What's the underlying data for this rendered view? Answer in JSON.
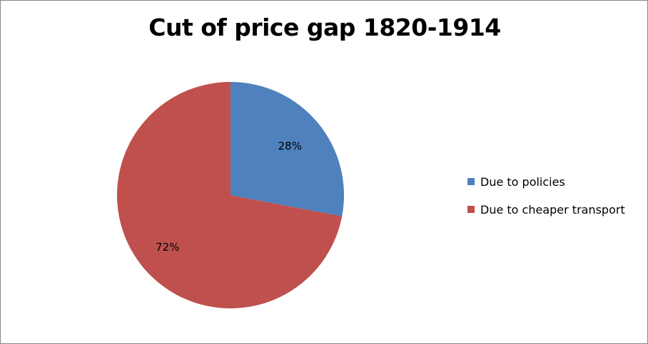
{
  "chart_data": {
    "type": "pie",
    "title": "Cut of price gap 1820-1914",
    "categories": [
      "Due to policies",
      "Due to cheaper transport"
    ],
    "values": [
      28,
      72
    ],
    "data_labels": [
      "28%",
      "72%"
    ],
    "colors": [
      "#4F81BD",
      "#C0504D"
    ],
    "legend_placement": "right",
    "start_angle_deg": 0,
    "direction": "clockwise"
  }
}
